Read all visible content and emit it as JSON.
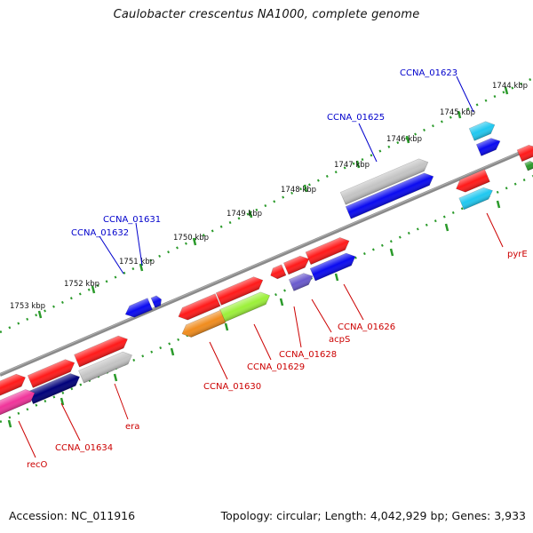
{
  "title": "Caulobacter crescentus NA1000, complete genome",
  "footer": {
    "accession": "Accession: NC_011916",
    "summary": "Topology: circular; Length: 4,042,929 bp; Genes: 3,933"
  },
  "ticks": [
    "1744 kbp",
    "1745 kbp",
    "1746 kbp",
    "1747 kbp",
    "1748 kbp",
    "1749 kbp",
    "1750 kbp",
    "1751 kbp",
    "1752 kbp",
    "1753 kbp"
  ],
  "labels": {
    "ccna_01623": "CCNA_01623",
    "ccna_01625": "CCNA_01625",
    "ccna_01631": "CCNA_01631",
    "ccna_01632": "CCNA_01632",
    "pyre": "pyrE",
    "ccna_01626": "CCNA_01626",
    "acps": "acpS",
    "ccna_01628": "CCNA_01628",
    "ccna_01629": "CCNA_01629",
    "ccna_01630": "CCNA_01630",
    "era": "era",
    "ccna_01634": "CCNA_01634",
    "reco": "recO"
  },
  "colors": {
    "red": "#ff1a1a",
    "blue": "#0a0af0",
    "cyan": "#20c8f0",
    "grey": "#c4c4c4",
    "navy": "#00007a",
    "purple": "#6a5acd",
    "orange": "#f08c1e",
    "lime": "#9cf03a",
    "pink": "#f0349a",
    "green": "#2a9a2a",
    "backbone": "#8a8a8a",
    "label_red": "#cc0000",
    "label_blue": "#0000cc"
  }
}
